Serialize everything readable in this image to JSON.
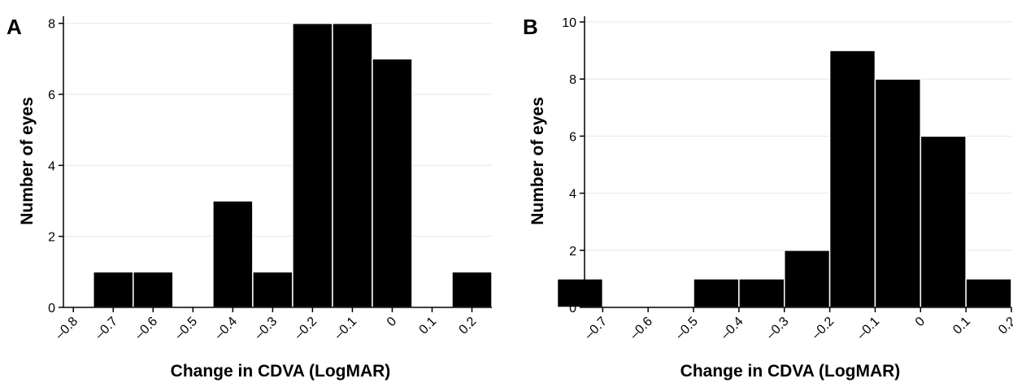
{
  "chart_data": [
    {
      "type": "bar",
      "panel_label": "A",
      "xlabel": "Change in CDVA (LogMAR)",
      "ylabel": "Number of eyes",
      "x_ticks": [
        "–0.8",
        "–0.7",
        "–0.6",
        "–0.5",
        "–0.4",
        "–0.3",
        "–0.2",
        "–0.1",
        "0",
        "0.1",
        "0.2"
      ],
      "y_ticks": [
        "0",
        "2",
        "4",
        "6",
        "8"
      ],
      "xlim": [
        -0.825,
        0.25
      ],
      "ylim": [
        0,
        8.2
      ],
      "grid": true,
      "bars": [
        {
          "x": -0.7,
          "value": 1
        },
        {
          "x": -0.6,
          "value": 1
        },
        {
          "x": -0.5,
          "value": 0
        },
        {
          "x": -0.4,
          "value": 3
        },
        {
          "x": -0.3,
          "value": 1
        },
        {
          "x": -0.2,
          "value": 8
        },
        {
          "x": -0.1,
          "value": 8
        },
        {
          "x": 0.0,
          "value": 7
        },
        {
          "x": 0.1,
          "value": 0
        },
        {
          "x": 0.2,
          "value": 1
        }
      ],
      "bar_width": 0.1,
      "bar_offset": -0.05
    },
    {
      "type": "bar",
      "panel_label": "B",
      "xlabel": "Change in CDVA (LogMAR)",
      "ylabel": "Number of eyes",
      "x_ticks": [
        "–0.7",
        "–0.6",
        "–0.5",
        "–0.4",
        "–0.3",
        "–0.2",
        "–0.1",
        "0",
        "0.1",
        "0.2"
      ],
      "y_ticks": [
        "0",
        "2",
        "4",
        "6",
        "8",
        "10"
      ],
      "xlim": [
        -0.74,
        0.2
      ],
      "ylim": [
        0,
        10.2
      ],
      "grid": true,
      "bars": [
        {
          "x": -0.7,
          "value": 1
        },
        {
          "x": -0.6,
          "value": 0
        },
        {
          "x": -0.5,
          "value": 0
        },
        {
          "x": -0.4,
          "value": 1
        },
        {
          "x": -0.3,
          "value": 1
        },
        {
          "x": -0.2,
          "value": 2
        },
        {
          "x": -0.1,
          "value": 9
        },
        {
          "x": 0.0,
          "value": 8
        },
        {
          "x": 0.1,
          "value": 6
        },
        {
          "x": 0.2,
          "value": 1
        }
      ],
      "bar_width": 0.1,
      "bar_offset": -0.1
    }
  ]
}
